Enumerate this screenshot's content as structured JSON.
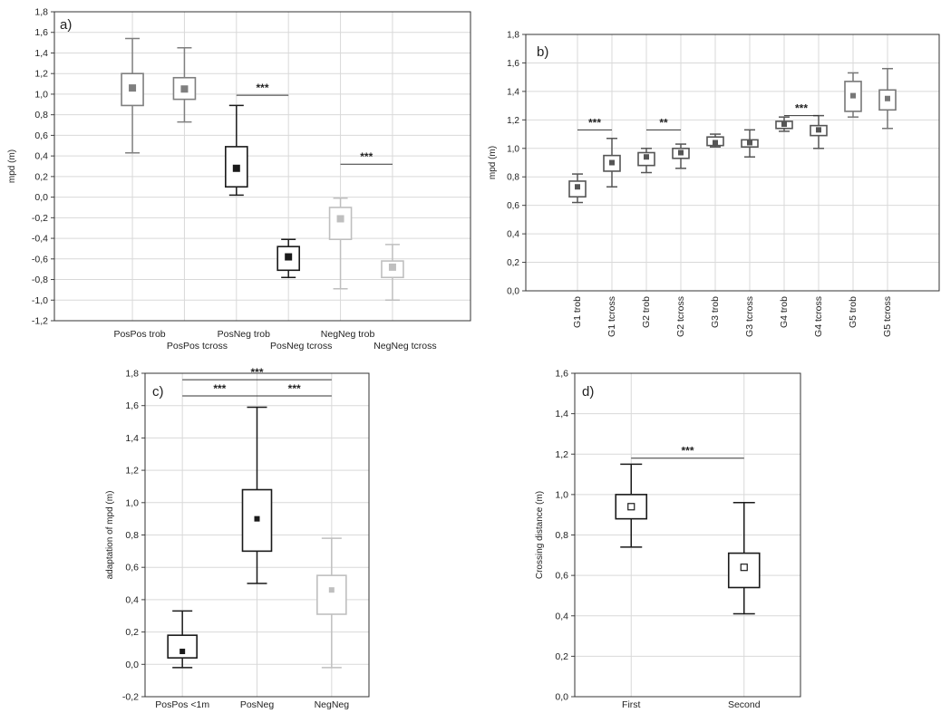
{
  "chart_data": [
    {
      "type": "boxplot",
      "panel_label": "a)",
      "ylabel": "mpd (m)",
      "ylim": [
        -1.2,
        1.8
      ],
      "yticks": [
        "-1,2",
        "-1,0",
        "-0,8",
        "-0,6",
        "-0,4",
        "-0,2",
        "0,0",
        "0,2",
        "0,4",
        "0,6",
        "0,8",
        "1,0",
        "1,2",
        "1,4",
        "1,6",
        "1,8"
      ],
      "categories": [
        "PosPos trob",
        "PosPos tcross",
        "PosNeg trob",
        "PosNeg tcross",
        "NegNeg trob",
        "NegNeg tcross"
      ],
      "boxes": [
        {
          "min": 0.43,
          "q1": 0.89,
          "median": 1.06,
          "q3": 1.2,
          "max": 1.54,
          "color": "#7f7f7f"
        },
        {
          "min": 0.73,
          "q1": 0.95,
          "median": 1.05,
          "q3": 1.16,
          "max": 1.45,
          "color": "#7f7f7f"
        },
        {
          "min": 0.02,
          "q1": 0.1,
          "median": 0.28,
          "q3": 0.49,
          "max": 0.89,
          "color": "#1a1a1a"
        },
        {
          "min": -0.78,
          "q1": -0.71,
          "median": -0.58,
          "q3": -0.48,
          "max": -0.41,
          "color": "#1a1a1a"
        },
        {
          "min": -0.89,
          "q1": -0.41,
          "median": -0.21,
          "q3": -0.1,
          "max": -0.01,
          "color": "#bfbfbf"
        },
        {
          "min": -1.0,
          "q1": -0.78,
          "median": -0.68,
          "q3": -0.62,
          "max": -0.46,
          "color": "#bfbfbf"
        }
      ],
      "significance": [
        {
          "from": 2,
          "to": 3,
          "y": 0.99,
          "label": "***"
        },
        {
          "from": 4,
          "to": 5,
          "y": 0.32,
          "label": "***"
        }
      ]
    },
    {
      "type": "boxplot",
      "panel_label": "b)",
      "ylabel": "mpd (m)",
      "ylim": [
        0.0,
        1.8
      ],
      "yticks": [
        "0,0",
        "0,2",
        "0,4",
        "0,6",
        "0,8",
        "1,0",
        "1,2",
        "1,4",
        "1,6",
        "1,8"
      ],
      "categories": [
        "G1 trob",
        "G1 tcross",
        "G2 trob",
        "G2 tcross",
        "G3 trob",
        "G3 tcross",
        "G4 trob",
        "G4 tcross",
        "G5 trob",
        "G5 tcross"
      ],
      "boxes": [
        {
          "min": 0.62,
          "q1": 0.66,
          "median": 0.73,
          "q3": 0.77,
          "max": 0.82,
          "color": "#555555"
        },
        {
          "min": 0.73,
          "q1": 0.84,
          "median": 0.9,
          "q3": 0.95,
          "max": 1.07,
          "color": "#555555"
        },
        {
          "min": 0.83,
          "q1": 0.88,
          "median": 0.94,
          "q3": 0.97,
          "max": 1.0,
          "color": "#555555"
        },
        {
          "min": 0.86,
          "q1": 0.93,
          "median": 0.97,
          "q3": 1.0,
          "max": 1.03,
          "color": "#555555"
        },
        {
          "min": 1.01,
          "q1": 1.02,
          "median": 1.04,
          "q3": 1.08,
          "max": 1.1,
          "color": "#555555"
        },
        {
          "min": 0.94,
          "q1": 1.01,
          "median": 1.04,
          "q3": 1.06,
          "max": 1.13,
          "color": "#555555"
        },
        {
          "min": 1.12,
          "q1": 1.14,
          "median": 1.17,
          "q3": 1.19,
          "max": 1.22,
          "color": "#555555"
        },
        {
          "min": 1.0,
          "q1": 1.09,
          "median": 1.13,
          "q3": 1.16,
          "max": 1.23,
          "color": "#555555"
        },
        {
          "min": 1.22,
          "q1": 1.26,
          "median": 1.37,
          "q3": 1.47,
          "max": 1.53,
          "color": "#777777"
        },
        {
          "min": 1.14,
          "q1": 1.27,
          "median": 1.35,
          "q3": 1.41,
          "max": 1.56,
          "color": "#777777"
        }
      ],
      "significance": [
        {
          "from": 0,
          "to": 1,
          "y": 1.13,
          "label": "***"
        },
        {
          "from": 2,
          "to": 3,
          "y": 1.13,
          "label": "**"
        },
        {
          "from": 6,
          "to": 7,
          "y": 1.23,
          "label": "***"
        }
      ]
    },
    {
      "type": "boxplot",
      "panel_label": "c)",
      "ylabel": "adaptation of mpd (m)",
      "ylim": [
        -0.2,
        1.8
      ],
      "yticks": [
        "-0,2",
        "0,0",
        "0,2",
        "0,4",
        "0,6",
        "0,8",
        "1,0",
        "1,2",
        "1,4",
        "1,6",
        "1,8"
      ],
      "categories": [
        "PosPos <1m",
        "PosNeg",
        "NegNeg"
      ],
      "boxes": [
        {
          "min": -0.02,
          "q1": 0.04,
          "median": 0.08,
          "q3": 0.18,
          "max": 0.33,
          "color": "#1a1a1a"
        },
        {
          "min": 0.5,
          "q1": 0.7,
          "median": 0.9,
          "q3": 1.08,
          "max": 1.59,
          "color": "#1a1a1a"
        },
        {
          "min": -0.02,
          "q1": 0.31,
          "median": 0.46,
          "q3": 0.55,
          "max": 0.78,
          "color": "#bfbfbf"
        }
      ],
      "significance": [
        {
          "from": 0,
          "to": 1,
          "y": 1.66,
          "label": "***"
        },
        {
          "from": 1,
          "to": 2,
          "y": 1.66,
          "label": "***"
        },
        {
          "from": 0,
          "to": 2,
          "y": 1.76,
          "label": "***"
        }
      ]
    },
    {
      "type": "boxplot",
      "panel_label": "d)",
      "ylabel": "Crossing distance (m)",
      "ylim": [
        0.0,
        1.6
      ],
      "yticks": [
        "0,0",
        "0,2",
        "0,4",
        "0,6",
        "0,8",
        "1,0",
        "1,2",
        "1,4",
        "1,6"
      ],
      "categories": [
        "First",
        "Second"
      ],
      "median_marker": "hollow",
      "boxes": [
        {
          "min": 0.74,
          "q1": 0.88,
          "median": 0.94,
          "q3": 1.0,
          "max": 1.15,
          "color": "#1a1a1a"
        },
        {
          "min": 0.41,
          "q1": 0.54,
          "median": 0.64,
          "q3": 0.71,
          "max": 0.96,
          "color": "#1a1a1a"
        }
      ],
      "significance": [
        {
          "from": 0,
          "to": 1,
          "y": 1.18,
          "label": "***"
        }
      ]
    }
  ]
}
